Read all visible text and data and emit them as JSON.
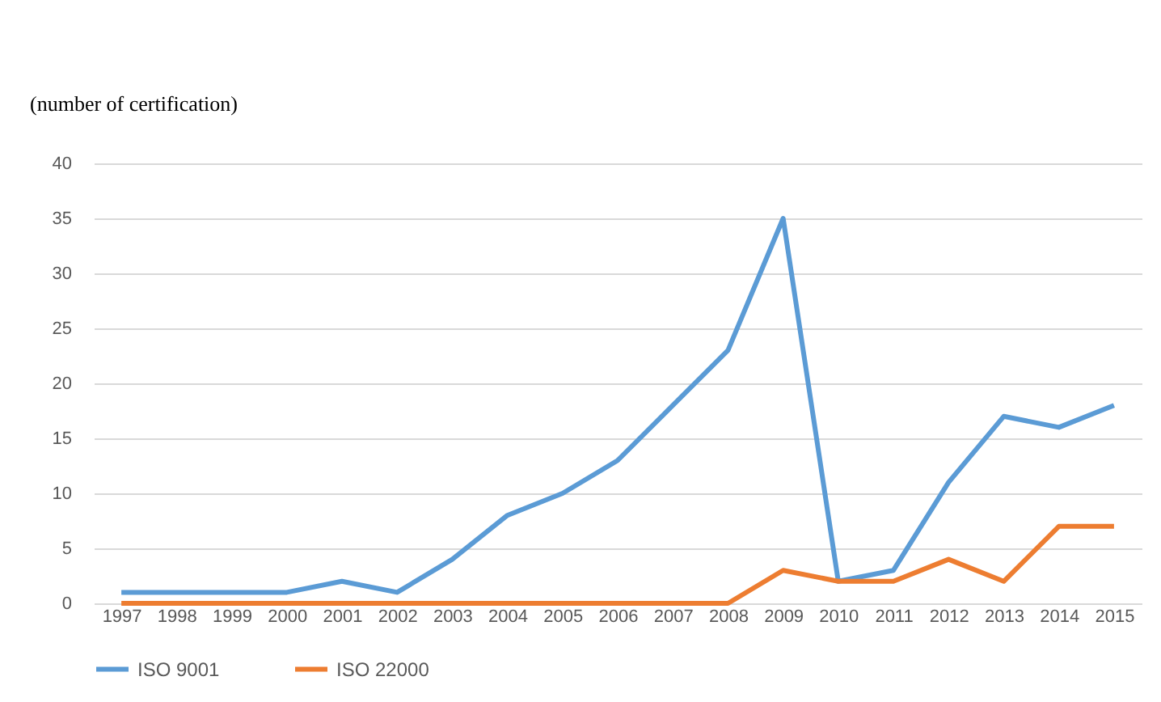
{
  "chart_data": {
    "type": "line",
    "ylabel": "(number of certification)",
    "categories": [
      "1997",
      "1998",
      "1999",
      "2000",
      "2001",
      "2002",
      "2003",
      "2004",
      "2005",
      "2006",
      "2007",
      "2008",
      "2009",
      "2010",
      "2011",
      "2012",
      "2013",
      "2014",
      "2015"
    ],
    "series": [
      {
        "name": "ISO 9001",
        "color": "#5b9bd5",
        "values": [
          1,
          1,
          1,
          1,
          2,
          1,
          4,
          8,
          10,
          13,
          18,
          23,
          35,
          2,
          3,
          11,
          17,
          16,
          18
        ]
      },
      {
        "name": "ISO 22000",
        "color": "#ed7d31",
        "values": [
          0,
          0,
          0,
          0,
          0,
          0,
          0,
          0,
          0,
          0,
          0,
          0,
          3,
          2,
          2,
          4,
          2,
          7,
          7
        ]
      }
    ],
    "ylim": [
      0,
      40
    ],
    "yticks": [
      0,
      5,
      10,
      15,
      20,
      25,
      30,
      35,
      40
    ],
    "grid": "y",
    "legend": "bottom",
    "marker": "none",
    "line_style": "solid"
  }
}
